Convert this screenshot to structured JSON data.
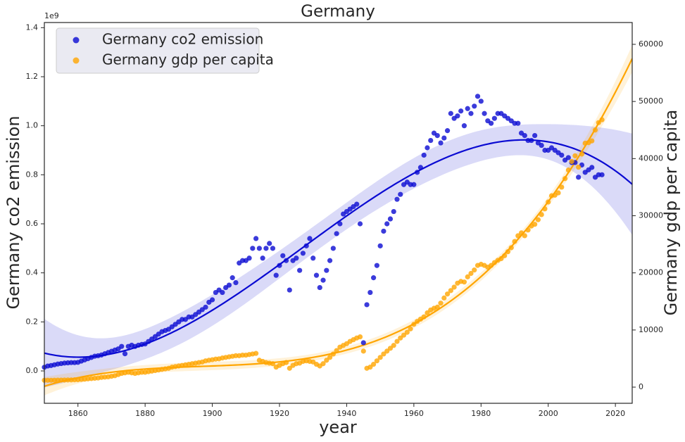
{
  "chart_data": {
    "type": "scatter",
    "title": "Germany",
    "xlabel": "year",
    "ylabel": "Germany co2 emission",
    "y2label": "Germany gdp per capita",
    "y_offset_label": "1e9",
    "legend": "upper left",
    "x": [
      1850,
      1851,
      1852,
      1853,
      1854,
      1855,
      1856,
      1857,
      1858,
      1859,
      1860,
      1861,
      1862,
      1863,
      1864,
      1865,
      1866,
      1867,
      1868,
      1869,
      1870,
      1871,
      1872,
      1873,
      1874,
      1875,
      1876,
      1877,
      1878,
      1879,
      1880,
      1881,
      1882,
      1883,
      1884,
      1885,
      1886,
      1887,
      1888,
      1889,
      1890,
      1891,
      1892,
      1893,
      1894,
      1895,
      1896,
      1897,
      1898,
      1899,
      1900,
      1901,
      1902,
      1903,
      1904,
      1905,
      1906,
      1907,
      1908,
      1909,
      1910,
      1911,
      1912,
      1913,
      1914,
      1915,
      1916,
      1917,
      1918,
      1919,
      1920,
      1921,
      1922,
      1923,
      1924,
      1925,
      1926,
      1927,
      1928,
      1929,
      1930,
      1931,
      1932,
      1933,
      1934,
      1935,
      1936,
      1937,
      1938,
      1939,
      1940,
      1941,
      1942,
      1943,
      1944,
      1945,
      1946,
      1947,
      1948,
      1949,
      1950,
      1951,
      1952,
      1953,
      1954,
      1955,
      1956,
      1957,
      1958,
      1959,
      1960,
      1961,
      1962,
      1963,
      1964,
      1965,
      1966,
      1967,
      1968,
      1969,
      1970,
      1971,
      1972,
      1973,
      1974,
      1975,
      1976,
      1977,
      1978,
      1979,
      1980,
      1981,
      1982,
      1983,
      1984,
      1985,
      1986,
      1987,
      1988,
      1989,
      1990,
      1991,
      1992,
      1993,
      1994,
      1995,
      1996,
      1997,
      1998,
      1999,
      2000,
      2001,
      2002,
      2003,
      2004,
      2005,
      2006,
      2007,
      2008,
      2009,
      2010,
      2011,
      2012,
      2013,
      2014,
      2015,
      2016
    ],
    "series": [
      {
        "name": "Germany co2 emission",
        "color": "#0a0ad2",
        "axis": "y",
        "values": [
          0.015,
          0.02,
          0.022,
          0.025,
          0.028,
          0.03,
          0.032,
          0.033,
          0.034,
          0.034,
          0.035,
          0.04,
          0.045,
          0.05,
          0.055,
          0.06,
          0.062,
          0.065,
          0.07,
          0.075,
          0.08,
          0.085,
          0.09,
          0.1,
          0.07,
          0.1,
          0.105,
          0.1,
          0.105,
          0.108,
          0.11,
          0.12,
          0.13,
          0.14,
          0.15,
          0.16,
          0.165,
          0.17,
          0.18,
          0.19,
          0.2,
          0.21,
          0.21,
          0.22,
          0.22,
          0.23,
          0.24,
          0.25,
          0.26,
          0.28,
          0.29,
          0.32,
          0.33,
          0.32,
          0.34,
          0.35,
          0.38,
          0.36,
          0.44,
          0.45,
          0.45,
          0.46,
          0.5,
          0.54,
          0.5,
          0.46,
          0.5,
          0.52,
          0.5,
          0.39,
          0.43,
          0.47,
          0.45,
          0.33,
          0.45,
          0.46,
          0.41,
          0.48,
          0.51,
          0.54,
          0.46,
          0.39,
          0.34,
          0.37,
          0.41,
          0.45,
          0.5,
          0.56,
          0.6,
          0.64,
          0.65,
          0.66,
          0.67,
          0.68,
          0.6,
          0.115,
          0.27,
          0.32,
          0.38,
          0.43,
          0.51,
          0.57,
          0.6,
          0.62,
          0.65,
          0.7,
          0.72,
          0.76,
          0.77,
          0.76,
          0.76,
          0.81,
          0.83,
          0.88,
          0.91,
          0.94,
          0.97,
          0.96,
          0.93,
          0.95,
          0.98,
          1.05,
          1.03,
          1.04,
          1.06,
          1.0,
          1.07,
          1.05,
          1.08,
          1.12,
          1.1,
          1.05,
          1.02,
          1.01,
          1.03,
          1.05,
          1.05,
          1.04,
          1.03,
          1.02,
          1.01,
          1.01,
          0.97,
          0.96,
          0.94,
          0.94,
          0.96,
          0.93,
          0.92,
          0.9,
          0.9,
          0.91,
          0.9,
          0.89,
          0.88,
          0.86,
          0.87,
          0.85,
          0.85,
          0.79,
          0.84,
          0.81,
          0.82,
          0.83,
          0.79,
          0.8,
          0.8
        ]
      },
      {
        "name": "Germany gdp per capita",
        "color": "#ffa500",
        "axis": "y2",
        "values": [
          1200,
          1200,
          1200,
          1210,
          1220,
          1230,
          1240,
          1250,
          1260,
          1280,
          1300,
          1350,
          1400,
          1450,
          1500,
          1550,
          1600,
          1700,
          1750,
          1800,
          1900,
          2000,
          2200,
          2400,
          2500,
          2600,
          2500,
          2400,
          2500,
          2600,
          2600,
          2700,
          2800,
          2900,
          3000,
          3100,
          3200,
          3300,
          3500,
          3600,
          3700,
          3800,
          3900,
          4000,
          4100,
          4200,
          4300,
          4400,
          4600,
          4700,
          4800,
          4900,
          4950,
          5100,
          5200,
          5300,
          5400,
          5500,
          5500,
          5600,
          5600,
          5700,
          5800,
          5900,
          4700,
          4500,
          4300,
          4200,
          4100,
          3500,
          3800,
          4100,
          4300,
          3300,
          3800,
          4100,
          4200,
          4500,
          4600,
          4500,
          4400,
          4000,
          3700,
          4100,
          4700,
          5200,
          5800,
          6400,
          7000,
          7300,
          7600,
          8000,
          8300,
          8600,
          8800,
          6300,
          3300,
          3500,
          4000,
          4600,
          5200,
          5800,
          6300,
          6800,
          7300,
          8000,
          8600,
          9100,
          9600,
          10200,
          11000,
          11500,
          11900,
          12300,
          13000,
          13500,
          13800,
          14000,
          14700,
          15600,
          16300,
          16900,
          17500,
          18200,
          18500,
          18400,
          19300,
          19900,
          20500,
          21300,
          21500,
          21300,
          21000,
          21300,
          21800,
          22200,
          22500,
          23000,
          23700,
          24400,
          25500,
          26500,
          27000,
          26500,
          27500,
          28200,
          28500,
          29300,
          30200,
          31200,
          32400,
          33500,
          33600,
          34000,
          35000,
          36500,
          38000,
          39500,
          40500,
          38500,
          40800,
          42700,
          42800,
          43100,
          45000,
          46300,
          46800
        ]
      }
    ],
    "xlim": [
      1850,
      2025
    ],
    "ylim": [
      -0.132,
      1.421
    ],
    "y2lim": [
      -2830,
      63820
    ],
    "xticks": [
      1860,
      1880,
      1900,
      1920,
      1940,
      1960,
      1980,
      2000,
      2020
    ],
    "yticks": [
      {
        "value": 0,
        "label": "0.0"
      },
      0.2,
      0.4,
      0.6,
      0.8,
      {
        "value": 1,
        "label": "1.0"
      },
      1.2,
      1.4
    ],
    "y2ticks": [
      0,
      10000,
      20000,
      30000,
      40000,
      50000,
      60000
    ]
  }
}
